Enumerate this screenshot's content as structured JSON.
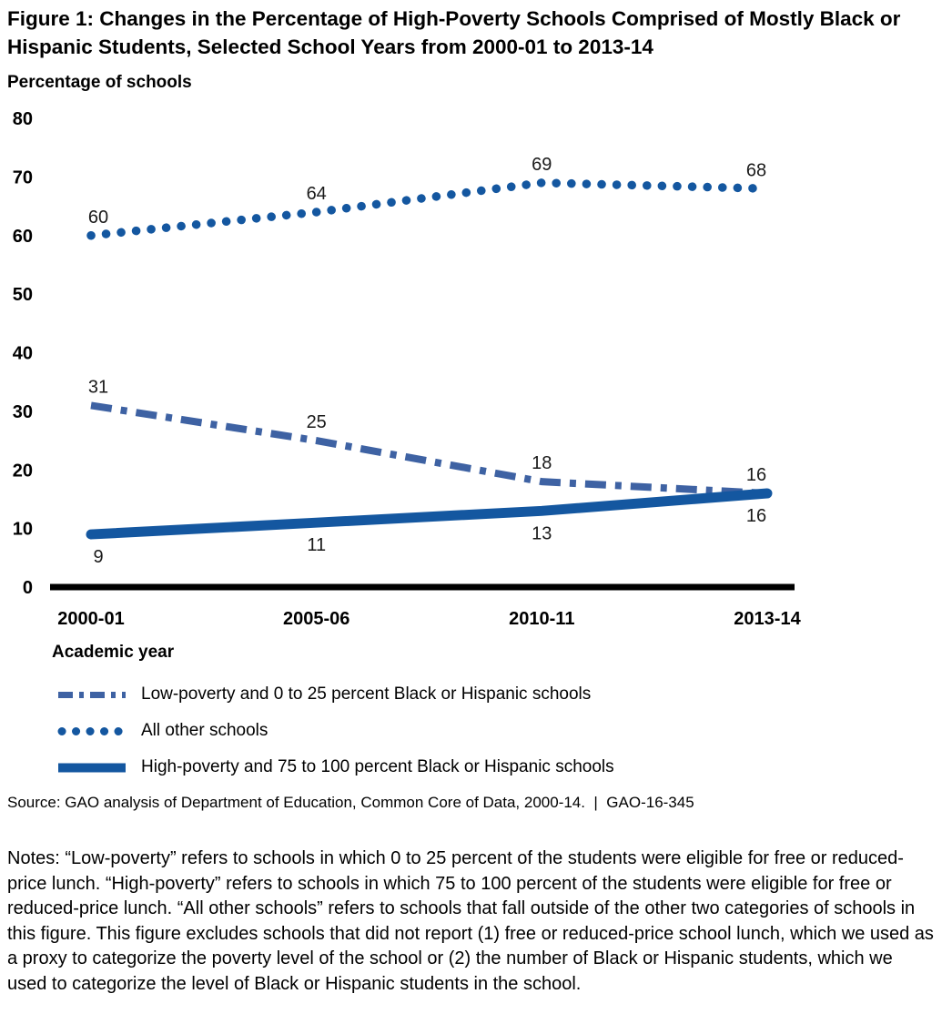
{
  "title": "Figure 1: Changes in the Percentage of High-Poverty Schools Comprised of Mostly Black or Hispanic Students, Selected School Years from 2000-01 to 2013-14",
  "colors": {
    "line_dark_blue": "#1457A0",
    "line_dashdot_blue": "#3E62A3",
    "axis_black": "#000000"
  },
  "chart_data": {
    "type": "line",
    "title": "",
    "ylabel": "Percentage of schools",
    "xlabel": "Academic year",
    "categories": [
      "2000-01",
      "2005-06",
      "2010-11",
      "2013-14"
    ],
    "ylim": [
      0,
      80
    ],
    "yticks": [
      0,
      10,
      20,
      30,
      40,
      50,
      60,
      70,
      80
    ],
    "grid": false,
    "data_labels_shown": true,
    "legend_position": "bottom-left",
    "series": [
      {
        "name": "Low-poverty and 0 to 25 percent Black or Hispanic schools",
        "values": [
          31,
          25,
          18,
          16
        ],
        "style": "dash-dot",
        "color": "#3E62A3",
        "label_position": "above"
      },
      {
        "name": "All other schools",
        "values": [
          60,
          64,
          69,
          68
        ],
        "style": "dotted",
        "color": "#1457A0",
        "label_position": "above"
      },
      {
        "name": "High-poverty and 75 to 100 percent Black or Hispanic schools",
        "values": [
          9,
          11,
          13,
          16
        ],
        "style": "solid",
        "color": "#1457A0",
        "label_position": "below"
      }
    ]
  },
  "legend": {
    "items": [
      {
        "label": "Low-poverty and 0 to 25 percent Black or Hispanic schools",
        "swatch": "dash-dot-line"
      },
      {
        "label": "All other schools",
        "swatch": "dotted-line"
      },
      {
        "label": "High-poverty and 75 to 100 percent Black or Hispanic schools",
        "swatch": "solid-line"
      }
    ]
  },
  "source_line": "Source: GAO analysis of Department of Education, Common Core of Data, 2000-14.  |  GAO-16-345",
  "notes": "Notes: “Low-poverty” refers to schools in which 0 to 25 percent of the students were eligible for free or reduced-price lunch. “High-poverty” refers to schools in which 75 to 100 percent of the students were eligible for free or reduced-price lunch. “All other schools” refers to schools that fall outside of the other two categories of schools in this figure. This figure excludes schools that did not report (1) free or reduced-price school lunch, which we used as a proxy to categorize the poverty level of the school or (2) the number of Black or Hispanic students, which we used to categorize the level of Black or Hispanic students in the school."
}
